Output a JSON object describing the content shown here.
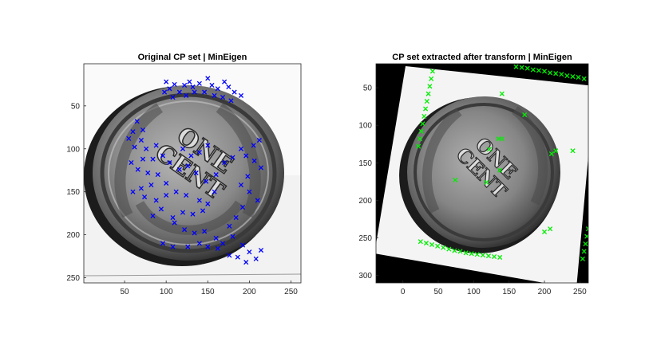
{
  "chart_data": [
    {
      "type": "scatter",
      "title": "Original CP set | MinEigen",
      "xlim": [
        1,
        262
      ],
      "ylim": [
        1,
        256
      ],
      "y_reversed": true,
      "xticks": [
        50,
        100,
        150,
        200,
        250
      ],
      "yticks": [
        50,
        100,
        150,
        200,
        250
      ],
      "background": "grayscale coin image (Indian head cent, reverse: ONE CENT in wreath)",
      "marker": "x",
      "marker_color": "#0000ff",
      "points": [
        [
          100,
          22
        ],
        [
          104,
          30
        ],
        [
          110,
          25
        ],
        [
          122,
          26
        ],
        [
          128,
          22
        ],
        [
          132,
          28
        ],
        [
          140,
          24
        ],
        [
          150,
          18
        ],
        [
          155,
          26
        ],
        [
          162,
          30
        ],
        [
          170,
          22
        ],
        [
          175,
          28
        ],
        [
          182,
          34
        ],
        [
          190,
          38
        ],
        [
          98,
          34
        ],
        [
          108,
          40
        ],
        [
          116,
          34
        ],
        [
          124,
          38
        ],
        [
          134,
          34
        ],
        [
          146,
          34
        ],
        [
          158,
          38
        ],
        [
          168,
          40
        ],
        [
          178,
          44
        ],
        [
          65,
          68
        ],
        [
          72,
          78
        ],
        [
          60,
          80
        ],
        [
          55,
          88
        ],
        [
          70,
          90
        ],
        [
          62,
          98
        ],
        [
          76,
          100
        ],
        [
          88,
          96
        ],
        [
          96,
          108
        ],
        [
          84,
          112
        ],
        [
          72,
          112
        ],
        [
          58,
          116
        ],
        [
          66,
          124
        ],
        [
          78,
          128
        ],
        [
          90,
          130
        ],
        [
          100,
          140
        ],
        [
          82,
          142
        ],
        [
          70,
          146
        ],
        [
          60,
          150
        ],
        [
          74,
          156
        ],
        [
          88,
          160
        ],
        [
          100,
          154
        ],
        [
          112,
          150
        ],
        [
          124,
          154
        ],
        [
          94,
          170
        ],
        [
          84,
          178
        ],
        [
          108,
          180
        ],
        [
          120,
          174
        ],
        [
          132,
          176
        ],
        [
          144,
          172
        ],
        [
          150,
          164
        ],
        [
          140,
          160
        ],
        [
          158,
          150
        ],
        [
          120,
          100
        ],
        [
          130,
          108
        ],
        [
          140,
          104
        ],
        [
          150,
          96
        ],
        [
          126,
          120
        ],
        [
          116,
          124
        ],
        [
          104,
          116
        ],
        [
          136,
          128
        ],
        [
          148,
          138
        ],
        [
          160,
          130
        ],
        [
          170,
          116
        ],
        [
          180,
          110
        ],
        [
          190,
          100
        ],
        [
          196,
          108
        ],
        [
          205,
          96
        ],
        [
          212,
          90
        ],
        [
          206,
          114
        ],
        [
          214,
          122
        ],
        [
          198,
          132
        ],
        [
          190,
          142
        ],
        [
          200,
          150
        ],
        [
          210,
          160
        ],
        [
          192,
          168
        ],
        [
          184,
          180
        ],
        [
          176,
          190
        ],
        [
          110,
          186
        ],
        [
          122,
          194
        ],
        [
          134,
          198
        ],
        [
          146,
          196
        ],
        [
          160,
          204
        ],
        [
          168,
          210
        ],
        [
          180,
          202
        ],
        [
          192,
          212
        ],
        [
          200,
          220
        ],
        [
          208,
          228
        ],
        [
          214,
          218
        ],
        [
          96,
          210
        ],
        [
          108,
          214
        ],
        [
          126,
          214
        ],
        [
          140,
          210
        ],
        [
          150,
          214
        ],
        [
          162,
          216
        ],
        [
          176,
          224
        ],
        [
          186,
          226
        ],
        [
          196,
          232
        ]
      ]
    },
    {
      "type": "scatter",
      "title": "CP set extracted after transform | MinEigen",
      "xlim": [
        -38,
        262
      ],
      "ylim": [
        18,
        310
      ],
      "y_reversed": true,
      "xticks": [
        0,
        50,
        100,
        150,
        200,
        250
      ],
      "yticks": [
        50,
        100,
        150,
        200,
        250,
        300
      ],
      "background": "rotated grayscale coin image on black canvas",
      "marker": "x",
      "marker_color": "#00ee00",
      "points": [
        [
          42,
          28
        ],
        [
          40,
          38
        ],
        [
          38,
          48
        ],
        [
          36,
          58
        ],
        [
          34,
          68
        ],
        [
          32,
          78
        ],
        [
          30,
          88
        ],
        [
          28,
          98
        ],
        [
          26,
          108
        ],
        [
          24,
          118
        ],
        [
          22,
          128
        ],
        [
          160,
          22
        ],
        [
          168,
          23
        ],
        [
          176,
          24
        ],
        [
          184,
          26
        ],
        [
          192,
          27
        ],
        [
          200,
          28
        ],
        [
          208,
          30
        ],
        [
          216,
          31
        ],
        [
          224,
          32
        ],
        [
          232,
          34
        ],
        [
          240,
          35
        ],
        [
          248,
          36
        ],
        [
          256,
          38
        ],
        [
          25,
          255
        ],
        [
          33,
          257
        ],
        [
          41,
          259
        ],
        [
          49,
          261
        ],
        [
          57,
          263
        ],
        [
          65,
          265
        ],
        [
          73,
          267
        ],
        [
          81,
          268
        ],
        [
          89,
          270
        ],
        [
          97,
          271
        ],
        [
          105,
          272
        ],
        [
          113,
          273
        ],
        [
          121,
          274
        ],
        [
          129,
          275
        ],
        [
          137,
          276
        ],
        [
          262,
          238
        ],
        [
          260,
          248
        ],
        [
          258,
          258
        ],
        [
          256,
          268
        ],
        [
          254,
          278
        ],
        [
          140,
          58
        ],
        [
          172,
          86
        ],
        [
          135,
          118
        ],
        [
          122,
          132
        ],
        [
          140,
          118
        ],
        [
          137,
          160
        ],
        [
          118,
          176
        ],
        [
          74,
          173
        ],
        [
          210,
          138
        ],
        [
          216,
          134
        ],
        [
          240,
          134
        ],
        [
          200,
          242
        ],
        [
          208,
          238
        ]
      ]
    }
  ]
}
